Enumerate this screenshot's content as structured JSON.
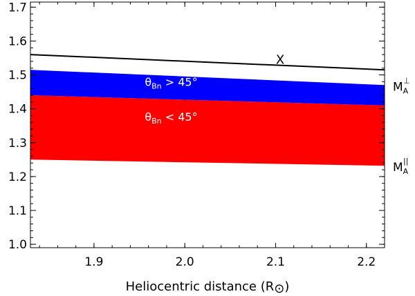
{
  "chart_data": {
    "type": "area",
    "xlabel_main": "Heliocentric distance (R",
    "xlabel_symbol": "⊙",
    "xlabel_close": ")",
    "ylabel": "",
    "xlim": [
      1.83,
      2.22
    ],
    "ylim": [
      0.99,
      1.715
    ],
    "x_ticks": [
      1.9,
      2.0,
      2.1,
      2.2
    ],
    "x_tick_labels": [
      "1.9",
      "2.0",
      "2.1",
      "2.2"
    ],
    "y_ticks": [
      1.0,
      1.1,
      1.2,
      1.3,
      1.4,
      1.5,
      1.6,
      1.7
    ],
    "y_tick_labels": [
      "1.0",
      "1.1",
      "1.2",
      "1.3",
      "1.4",
      "1.5",
      "1.6",
      "1.7"
    ],
    "x_line": {
      "label": "X",
      "label_at": [
        2.105,
        1.533
      ],
      "points": [
        [
          1.83,
          1.56
        ],
        [
          2.22,
          1.515
        ]
      ],
      "color": "#000000"
    },
    "blue_band": {
      "upper": [
        [
          1.83,
          1.515
        ],
        [
          2.22,
          1.47
        ]
      ],
      "lower": [
        [
          1.83,
          1.44
        ],
        [
          2.22,
          1.41
        ]
      ],
      "color": "#0000ff",
      "label_theta": "θ",
      "label_sub": "Bn",
      "label_rest": " > 45°",
      "label_at": [
        1.985,
        1.468
      ]
    },
    "red_band": {
      "upper": [
        [
          1.83,
          1.44
        ],
        [
          2.22,
          1.41
        ]
      ],
      "lower": [
        [
          1.83,
          1.25
        ],
        [
          2.22,
          1.232
        ]
      ],
      "color": "#ff0000",
      "label_theta": "θ",
      "label_sub": "Bn",
      "label_rest": " < 45°",
      "label_at": [
        1.985,
        1.365
      ]
    },
    "side_labels": [
      {
        "main": "M",
        "sub": "A",
        "sup": "⊥",
        "y": 1.47
      },
      {
        "main": "M",
        "sub": "A",
        "sup": "||",
        "y": 1.232
      }
    ],
    "grid": false
  }
}
